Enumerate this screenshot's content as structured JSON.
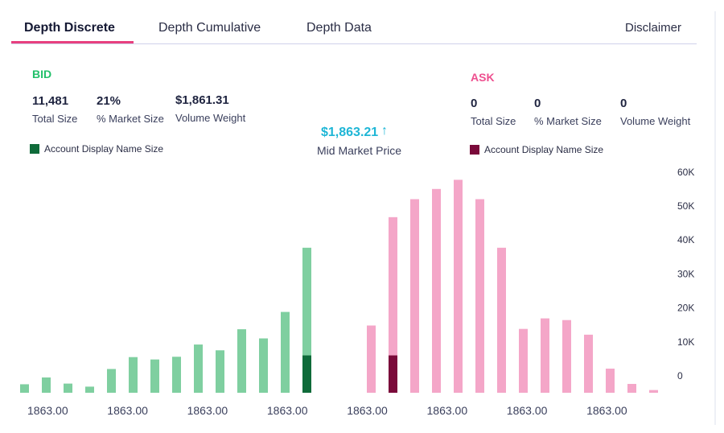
{
  "tabs": [
    "Depth Discrete",
    "Depth Cumulative",
    "Depth Data"
  ],
  "disclaimer": "Disclaimer",
  "bid": {
    "title": "BID",
    "total_size": "11,481",
    "total_size_label": "Total Size",
    "market_size": "21%",
    "market_size_label": "% Market Size",
    "volume_weight": "$1,861.31",
    "volume_weight_label": "Volume Weight",
    "legend": "Account Display Name Size"
  },
  "ask": {
    "title": "ASK",
    "total_size": "0",
    "total_size_label": "Total Size",
    "market_size": "0",
    "market_size_label": "% Market Size",
    "volume_weight": "0",
    "volume_weight_label": "Volume Weight",
    "legend": "Account Display Name Size"
  },
  "mid_market": {
    "price": "$1,863.21",
    "arrow": "↑",
    "label": "Mid Market Price"
  },
  "colors": {
    "bid": "#7fcfa0",
    "bid_account": "#0f6b3a",
    "ask": "#f4a6c8",
    "ask_account": "#7a0a3a",
    "bid_title": "#22c06a",
    "ask_title": "#ee4f8f"
  },
  "chart_data": {
    "type": "bar",
    "ylim": [
      0,
      60000
    ],
    "yticks": [
      "0",
      "10K",
      "20K",
      "30K",
      "40K",
      "50K",
      "60K"
    ],
    "ytick_values": [
      0,
      10000,
      20000,
      30000,
      40000,
      50000,
      60000
    ],
    "xtick_labels": [
      "1863.00",
      "1863.00",
      "1863.00",
      "1863.00",
      "1863.00",
      "1863.00",
      "1863.00",
      "1863.00"
    ],
    "series": [
      {
        "name": "Bid",
        "values": [
          2500,
          4500,
          2700,
          1800,
          7000,
          10500,
          9800,
          10600,
          14200,
          12500,
          18700,
          16000,
          23800,
          42700
        ],
        "account": [
          0,
          0,
          0,
          0,
          0,
          0,
          0,
          0,
          0,
          0,
          0,
          0,
          0,
          11000
        ]
      },
      {
        "name": "Ask",
        "values": [
          19800,
          51700,
          57000,
          60000,
          62700,
          57000,
          42700,
          18800,
          21900,
          21400,
          17100,
          7100,
          2600,
          800
        ],
        "account": [
          0,
          11000,
          0,
          0,
          0,
          0,
          0,
          0,
          0,
          0,
          0,
          0,
          0,
          0
        ]
      }
    ]
  }
}
